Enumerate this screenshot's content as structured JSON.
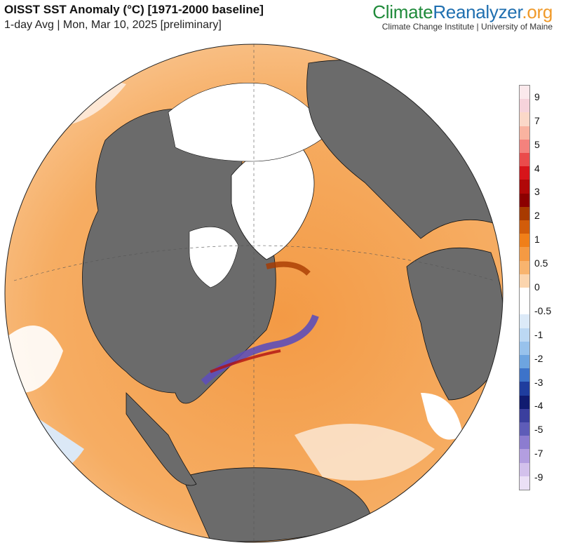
{
  "header": {
    "title": "OISST SST Anomaly (°C) [1971-2000 baseline]",
    "subtitle": "1-day Avg | Mon, Mar 10, 2025 [preliminary]"
  },
  "brand": {
    "part1": "Climate",
    "part2": "Reanalyzer",
    "part3": ".org",
    "institute": "Climate Change Institute | University of Maine"
  },
  "colorbar": {
    "colors": [
      "#fbe9ec",
      "#f6d3db",
      "#fbd8c8",
      "#f9b3a0",
      "#f4827d",
      "#ea4b4b",
      "#d7141a",
      "#b00808",
      "#8c0000",
      "#a83a00",
      "#d25c0a",
      "#f07f19",
      "#f59a43",
      "#f8b46e",
      "#fbd5ae",
      "#ffffff",
      "#ffffff",
      "#dceaf8",
      "#bcd8f3",
      "#98c2ec",
      "#6da4e0",
      "#3d73c9",
      "#1f3d9e",
      "#101b70",
      "#3b3f9e",
      "#5e5cb8",
      "#8c7cd0",
      "#b39ee0",
      "#d3c1ec",
      "#ebe0f6"
    ],
    "labels": [
      "9",
      "7",
      "5",
      "4",
      "3",
      "2",
      "1",
      "0.5",
      "0",
      "-0.5",
      "-1",
      "-2",
      "-3",
      "-4",
      "-5",
      "-7",
      "-9"
    ]
  }
}
